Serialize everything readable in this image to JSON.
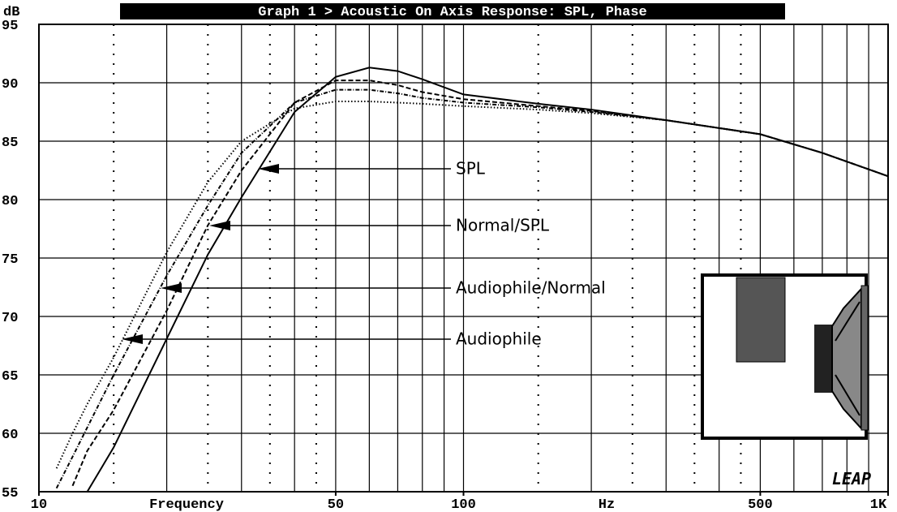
{
  "chart_data": {
    "type": "line",
    "title": "Graph 1 > Acoustic On Axis Response: SPL, Phase",
    "y_label": "dB",
    "x_label": "Frequency",
    "x_unit": "Hz",
    "logo": "LEAP",
    "x_log": true,
    "x": [
      10,
      11,
      12,
      13,
      15,
      20,
      25,
      30,
      40,
      50,
      60,
      70,
      80,
      100,
      150,
      200,
      300,
      500,
      700,
      1000
    ],
    "series": [
      {
        "name": "SPL",
        "color": "#000000",
        "dash": "none",
        "values": [
          null,
          null,
          null,
          55,
          58.8,
          68.1,
          75.3,
          80.2,
          87.5,
          90.5,
          91.3,
          91,
          90.3,
          89,
          88.2,
          87.7,
          86.8,
          85.6,
          84,
          82
        ]
      },
      {
        "name": "Normal/SPL",
        "color": "#000000",
        "dash": "6 3",
        "values": [
          null,
          null,
          55.5,
          58.5,
          62,
          70.5,
          77.8,
          82.5,
          88.3,
          90.2,
          90.2,
          89.8,
          89.2,
          88.6,
          88,
          87.6,
          86.8,
          85.6,
          84,
          82
        ]
      },
      {
        "name": "Audiophile/Normal",
        "color": "#000000",
        "dash": "5 2 1 2",
        "values": [
          null,
          55.3,
          58,
          60.5,
          65,
          73.5,
          79.5,
          84,
          88.3,
          89.4,
          89.4,
          89.1,
          88.7,
          88.3,
          87.9,
          87.5,
          86.8,
          85.6,
          84,
          82
        ]
      },
      {
        "name": "Audiophile",
        "color": "#000000",
        "dash": "1.5 2.5",
        "values": [
          null,
          57,
          60,
          62.5,
          66.5,
          75.5,
          81.5,
          85,
          87.8,
          88.4,
          88.4,
          88.3,
          88.2,
          88,
          87.7,
          87.4,
          86.8,
          85.6,
          84,
          82
        ]
      }
    ],
    "xlim": [
      10,
      1000
    ],
    "ylim": [
      55,
      95
    ],
    "xticks": [
      10,
      50,
      100,
      500,
      {
        "value": 1000,
        "label": "1K"
      }
    ],
    "yticks": [
      55,
      60,
      65,
      70,
      75,
      80,
      85,
      90,
      95
    ],
    "xgrid": [
      20,
      30,
      40,
      50,
      60,
      70,
      80,
      90,
      100,
      200,
      300,
      400,
      500,
      600,
      700,
      800,
      900
    ],
    "xgrid_minor": [
      15,
      25,
      35,
      45,
      150,
      250,
      350,
      450
    ],
    "grid": true
  }
}
